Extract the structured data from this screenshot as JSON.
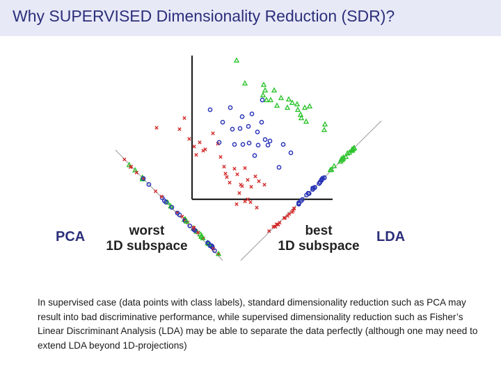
{
  "slide": {
    "title": "Why SUPERVISED Dimensionality Reduction (SDR)?",
    "caption": "In supervised case (data points with class labels), standard dimensionality reduction such as PCA may result into bad discriminative performance, while supervised dimensionality reduction such as Fisher’s Linear Discriminant Analysis (LDA) may be able to separate the data perfectly (although one may need to extend LDA beyond 1D-projections)"
  },
  "figure": {
    "left_method": "PCA",
    "left_label_line1": "worst",
    "left_label_line2": "1D subspace",
    "right_method": "LDA",
    "right_label_line1": "best",
    "right_label_line2": "1D subspace",
    "classes": [
      {
        "name": "red-crosses",
        "color": "#d42a2a",
        "marker": "x"
      },
      {
        "name": "blue-circles",
        "color": "#2a35b8",
        "marker": "o"
      },
      {
        "name": "green-triangles",
        "color": "#2fc42f",
        "marker": "triangle"
      }
    ]
  }
}
